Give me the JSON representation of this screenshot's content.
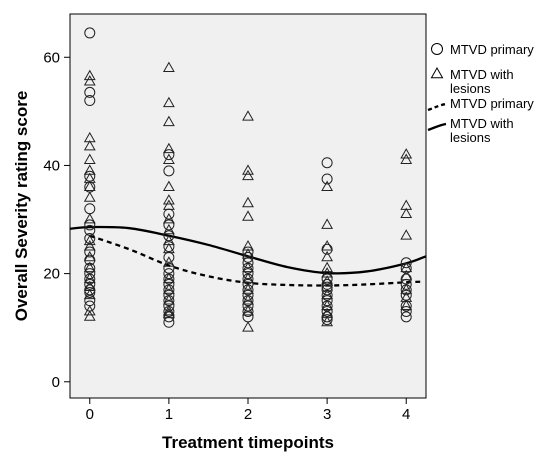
{
  "chart_data": {
    "type": "scatter",
    "title": "",
    "xlabel": "Treatment timepoints",
    "ylabel": "Overall Severity rating score",
    "xlim": [
      -0.25,
      4.25
    ],
    "ylim": [
      -3,
      68
    ],
    "x_ticks": [
      0,
      1,
      2,
      3,
      4
    ],
    "y_ticks": [
      0,
      20,
      40,
      60
    ],
    "grid": false,
    "legend_position": "right",
    "colors": {
      "plot_background": "#f0f0f0",
      "marks": "#000000"
    },
    "series": [
      {
        "name": "MTVD primary",
        "kind": "points",
        "marker": "circle",
        "points": [
          [
            0,
            64.5
          ],
          [
            0,
            53.5
          ],
          [
            0,
            52
          ],
          [
            0,
            38
          ],
          [
            0,
            36
          ],
          [
            0,
            32
          ],
          [
            0,
            29
          ],
          [
            0,
            28
          ],
          [
            0,
            26.5
          ],
          [
            0,
            24
          ],
          [
            0,
            22.5
          ],
          [
            0,
            21
          ],
          [
            0,
            20
          ],
          [
            0,
            19
          ],
          [
            0,
            18
          ],
          [
            0,
            17
          ],
          [
            0,
            16.5
          ],
          [
            0,
            15
          ],
          [
            0,
            14
          ],
          [
            1,
            42
          ],
          [
            1,
            39
          ],
          [
            1,
            31
          ],
          [
            1,
            29
          ],
          [
            1,
            27
          ],
          [
            1,
            25
          ],
          [
            1,
            23
          ],
          [
            1,
            21
          ],
          [
            1,
            20
          ],
          [
            1,
            19
          ],
          [
            1,
            18
          ],
          [
            1,
            17
          ],
          [
            1,
            16
          ],
          [
            1,
            15
          ],
          [
            1,
            14
          ],
          [
            1,
            13
          ],
          [
            1,
            12
          ],
          [
            1,
            11
          ],
          [
            2,
            24
          ],
          [
            2,
            23
          ],
          [
            2,
            22
          ],
          [
            2,
            21
          ],
          [
            2,
            20
          ],
          [
            2,
            19
          ],
          [
            2,
            18
          ],
          [
            2,
            17
          ],
          [
            2,
            16
          ],
          [
            2,
            15
          ],
          [
            2,
            14
          ],
          [
            2,
            13
          ],
          [
            2,
            12
          ],
          [
            3,
            40.5
          ],
          [
            3,
            37.5
          ],
          [
            3,
            24.5
          ],
          [
            3,
            19
          ],
          [
            3,
            18
          ],
          [
            3,
            17.5
          ],
          [
            3,
            17
          ],
          [
            3,
            16
          ],
          [
            3,
            15
          ],
          [
            3,
            14
          ],
          [
            3,
            13
          ],
          [
            3,
            12
          ],
          [
            3,
            11.5
          ],
          [
            4,
            22
          ],
          [
            4,
            21
          ],
          [
            4,
            19
          ],
          [
            4,
            18
          ],
          [
            4,
            17
          ],
          [
            4,
            16
          ],
          [
            4,
            14
          ],
          [
            4,
            13
          ],
          [
            4,
            12
          ]
        ]
      },
      {
        "name": "MTVD with lesions",
        "kind": "points",
        "marker": "triangle",
        "points": [
          [
            0,
            56.5
          ],
          [
            0,
            55.5
          ],
          [
            0,
            45
          ],
          [
            0,
            43.5
          ],
          [
            0,
            41
          ],
          [
            0,
            39
          ],
          [
            0,
            37.5
          ],
          [
            0,
            36
          ],
          [
            0,
            34
          ],
          [
            0,
            30
          ],
          [
            0,
            26
          ],
          [
            0,
            25
          ],
          [
            0,
            23
          ],
          [
            0,
            21
          ],
          [
            0,
            19
          ],
          [
            0,
            17.5
          ],
          [
            0,
            16
          ],
          [
            0,
            13
          ],
          [
            0,
            12
          ],
          [
            1,
            58
          ],
          [
            1,
            51.5
          ],
          [
            1,
            48
          ],
          [
            1,
            43
          ],
          [
            1,
            41
          ],
          [
            1,
            36
          ],
          [
            1,
            33.5
          ],
          [
            1,
            32.5
          ],
          [
            1,
            30
          ],
          [
            1,
            28
          ],
          [
            1,
            26
          ],
          [
            1,
            24.5
          ],
          [
            1,
            22
          ],
          [
            1,
            19
          ],
          [
            1,
            17
          ],
          [
            1,
            15
          ],
          [
            1,
            13
          ],
          [
            1,
            12.5
          ],
          [
            2,
            49
          ],
          [
            2,
            39
          ],
          [
            2,
            38
          ],
          [
            2,
            33
          ],
          [
            2,
            30.5
          ],
          [
            2,
            25
          ],
          [
            2,
            23.5
          ],
          [
            2,
            21
          ],
          [
            2,
            19
          ],
          [
            2,
            17
          ],
          [
            2,
            15
          ],
          [
            2,
            13
          ],
          [
            2,
            10
          ],
          [
            3,
            36
          ],
          [
            3,
            29
          ],
          [
            3,
            25
          ],
          [
            3,
            23
          ],
          [
            3,
            21
          ],
          [
            3,
            20
          ],
          [
            3,
            18.5
          ],
          [
            3,
            16
          ],
          [
            3,
            14
          ],
          [
            3,
            12.5
          ],
          [
            3,
            11
          ],
          [
            4,
            42
          ],
          [
            4,
            41
          ],
          [
            4,
            32.5
          ],
          [
            4,
            31
          ],
          [
            4,
            27
          ],
          [
            4,
            21
          ],
          [
            4,
            19.5
          ],
          [
            4,
            17
          ],
          [
            4,
            15.5
          ],
          [
            4,
            14
          ]
        ]
      },
      {
        "name": "MTVD primary",
        "kind": "fit",
        "line_style": "dashed",
        "x": [
          0,
          0.5,
          1,
          1.5,
          2,
          2.5,
          3,
          3.5,
          4,
          4.2
        ],
        "y": [
          27,
          24.5,
          21.5,
          19.5,
          18.3,
          17.9,
          17.8,
          18,
          18.4,
          18.5
        ]
      },
      {
        "name": "MTVD with lesions",
        "kind": "fit",
        "line_style": "solid",
        "x": [
          -0.25,
          0,
          0.5,
          1,
          1.5,
          2,
          2.5,
          3,
          3.5,
          4,
          4.25
        ],
        "y": [
          28.3,
          28.6,
          28.4,
          27,
          25.3,
          23.2,
          21.2,
          20.1,
          20.4,
          21.9,
          23.2
        ]
      }
    ]
  }
}
